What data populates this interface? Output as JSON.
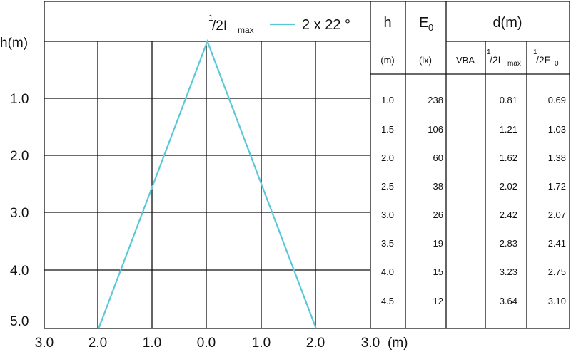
{
  "chart_data": {
    "type": "line",
    "legend": {
      "label_1": "1",
      "label_2": "/2I",
      "label_3": "max",
      "value": "2 x 22 °",
      "color": "#5bc8d8"
    },
    "y_axis_label": "h(m)",
    "x_axis_unit": "(m)",
    "y_ticks": [
      "1.0",
      "2.0",
      "3.0",
      "4.0",
      "5.0"
    ],
    "x_ticks": [
      "3.0",
      "2.0",
      "1.0",
      "0.0",
      "1.0",
      "2.0",
      "3.0"
    ],
    "x_range": [
      -3,
      3
    ],
    "y_range": [
      0,
      5
    ],
    "series": [
      {
        "x": [
          -2.0,
          0.0,
          2.0
        ],
        "y": [
          5.0,
          0.0,
          5.0
        ]
      }
    ]
  },
  "table": {
    "headers": {
      "h": "h",
      "e0_main": "E",
      "e0_sub": "0",
      "d": "d(m)",
      "h_unit": "(m)",
      "e0_unit": "(lx)",
      "vba": "VBA",
      "half_imax_1": "1",
      "half_imax_2": "/2I",
      "half_imax_3": "max",
      "half_e0_1": "1",
      "half_e0_2": "/2E",
      "half_e0_3": "0"
    },
    "rows": [
      {
        "h": "1.0",
        "e0": "238",
        "vba": "",
        "d_imax": "0.81",
        "d_e0": "0.69"
      },
      {
        "h": "1.5",
        "e0": "106",
        "vba": "",
        "d_imax": "1.21",
        "d_e0": "1.03"
      },
      {
        "h": "2.0",
        "e0": "60",
        "vba": "",
        "d_imax": "1.62",
        "d_e0": "1.38"
      },
      {
        "h": "2.5",
        "e0": "38",
        "vba": "",
        "d_imax": "2.02",
        "d_e0": "1.72"
      },
      {
        "h": "3.0",
        "e0": "26",
        "vba": "",
        "d_imax": "2.42",
        "d_e0": "2.07"
      },
      {
        "h": "3.5",
        "e0": "19",
        "vba": "",
        "d_imax": "2.83",
        "d_e0": "2.41"
      },
      {
        "h": "4.0",
        "e0": "15",
        "vba": "",
        "d_imax": "3.23",
        "d_e0": "2.75"
      },
      {
        "h": "4.5",
        "e0": "12",
        "vba": "",
        "d_imax": "3.64",
        "d_e0": "3.10"
      }
    ]
  }
}
